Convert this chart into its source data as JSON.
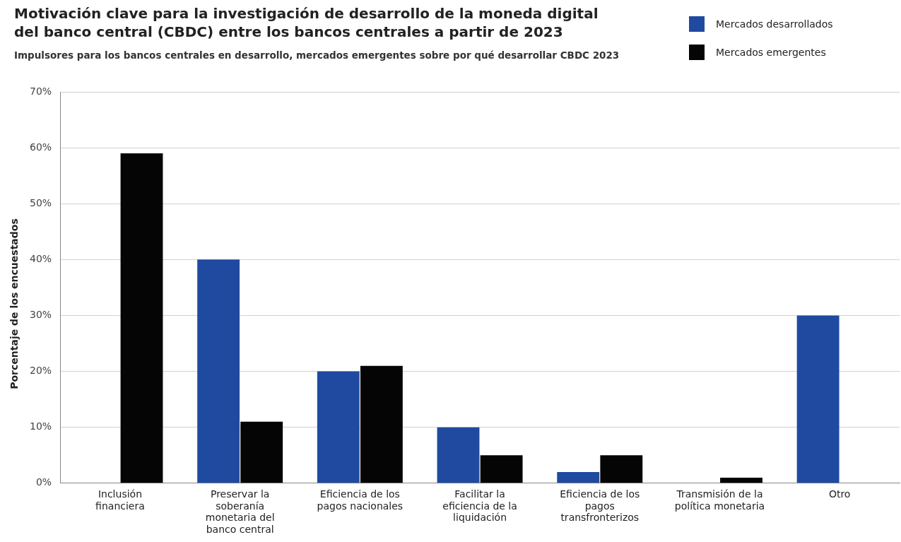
{
  "chart_data": {
    "type": "bar",
    "title": "Motivación clave para la investigación de desarrollo de la moneda digital del banco central (CBDC) entre los bancos centrales a partir de 2023",
    "subtitle": "Impulsores para los bancos centrales en desarrollo, mercados emergentes sobre por qué desarrollar CBDC 2023",
    "ylabel": "Porcentaje de los encuestados",
    "categories": [
      "Inclusión financiera",
      "Preservar la soberanía monetaria del banco central",
      "Eficiencia de los pagos nacionales",
      "Facilitar la eficiencia de la liquidación",
      "Eficiencia de los pagos transfronterizos",
      "Transmisión de la política monetaria",
      "Otro"
    ],
    "series": [
      {
        "name": "Mercados desarrollados",
        "color": "#1f4aa0",
        "values": [
          0,
          40,
          20,
          10,
          2,
          0,
          30
        ]
      },
      {
        "name": "Mercados emergentes",
        "color": "#050505",
        "values": [
          59,
          11,
          21,
          5,
          5,
          1,
          0
        ]
      }
    ],
    "ylim": [
      0,
      70
    ],
    "yticks": [
      {
        "value": 0,
        "label": "0%"
      },
      {
        "value": 10,
        "label": "10%"
      },
      {
        "value": 20,
        "label": "20%"
      },
      {
        "value": 30,
        "label": "30%"
      },
      {
        "value": 40,
        "label": "40%"
      },
      {
        "value": 50,
        "label": "50%"
      },
      {
        "value": 60,
        "label": "60%"
      },
      {
        "value": 70,
        "label": "70%"
      }
    ],
    "grid": "y",
    "legend": "top right"
  }
}
